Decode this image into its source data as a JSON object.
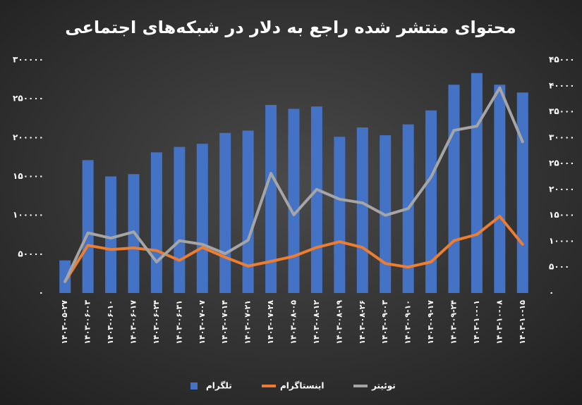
{
  "chart_data": {
    "type": "bar-line",
    "title": "محتوای منتشر شده راجع به دلار در شبکه‌های اجتماعی",
    "categories": [
      "۱۴۰۳-۰۵-۲۷",
      "۱۴۰۳-۰۶-۰۳",
      "۱۴۰۳-۰۶-۱۰",
      "۱۴۰۳-۰۶-۱۷",
      "۱۴۰۳-۰۶-۲۴",
      "۱۴۰۳-۰۶-۳۱",
      "۱۴۰۳-۰۷-۰۷",
      "۱۴۰۳-۰۷-۱۴",
      "۱۴۰۳-۰۷-۲۱",
      "۱۴۰۳-۰۷-۲۸",
      "۱۴۰۳-۰۸-۰۵",
      "۱۴۰۳-۰۸-۱۲",
      "۱۴۰۳-۰۸-۱۹",
      "۱۴۰۳-۰۸-۲۶",
      "۱۴۰۳-۰۹-۰۳",
      "۱۴۰۳-۰۹-۱۰",
      "۱۴۰۳-۰۹-۱۷",
      "۱۴۰۳-۰۹-۲۴",
      "۱۴۰۳-۱۰-۰۱",
      "۱۴۰۳-۱۰-۰۸",
      "۱۴۰۳-۱۰-۱۵"
    ],
    "series": [
      {
        "name": "تلگرام",
        "type": "bar",
        "color": "#4472c4",
        "values": [
          42000,
          171000,
          150000,
          153000,
          181000,
          188000,
          192000,
          206000,
          209000,
          242000,
          237000,
          240000,
          201000,
          213000,
          203000,
          217000,
          235000,
          268000,
          283000,
          268000,
          258000
        ]
      },
      {
        "name": "اینستاگرام",
        "type": "line",
        "axis": "y2",
        "color": "#ed7d31",
        "values": [
          2200,
          9200,
          8400,
          8700,
          8200,
          6300,
          8800,
          6900,
          5200,
          6100,
          7100,
          8800,
          9900,
          8800,
          5700,
          5000,
          6000,
          10100,
          11300,
          14800,
          9400
        ]
      },
      {
        "name": "توئیتر",
        "type": "line",
        "axis": "y2",
        "color": "#a5a5a5",
        "values": [
          2200,
          11600,
          10600,
          11800,
          6000,
          10100,
          9400,
          7600,
          10200,
          23100,
          15100,
          20000,
          18100,
          17400,
          15000,
          16300,
          22400,
          31400,
          32200,
          39600,
          29200
        ]
      }
    ],
    "ylim": [
      0,
      300000
    ],
    "yticks": [
      {
        "value": 0,
        "label": "۰"
      },
      {
        "value": 50000,
        "label": "۵۰۰۰۰"
      },
      {
        "value": 100000,
        "label": "۱۰۰۰۰۰"
      },
      {
        "value": 150000,
        "label": "۱۵۰۰۰۰"
      },
      {
        "value": 200000,
        "label": "۲۰۰۰۰۰"
      },
      {
        "value": 250000,
        "label": "۲۵۰۰۰۰"
      },
      {
        "value": 300000,
        "label": "۳۰۰۰۰۰"
      }
    ],
    "y2lim": [
      0,
      45000
    ],
    "y2ticks": [
      {
        "value": 0,
        "label": "۰"
      },
      {
        "value": 5000,
        "label": "۵۰۰۰"
      },
      {
        "value": 10000,
        "label": "۱۰۰۰۰"
      },
      {
        "value": 15000,
        "label": "۱۵۰۰۰"
      },
      {
        "value": 20000,
        "label": "۲۰۰۰۰"
      },
      {
        "value": 25000,
        "label": "۲۵۰۰۰"
      },
      {
        "value": 30000,
        "label": "۳۰۰۰۰"
      },
      {
        "value": 35000,
        "label": "۳۵۰۰۰"
      },
      {
        "value": 40000,
        "label": "۴۰۰۰۰"
      },
      {
        "value": 45000,
        "label": "۴۵۰۰۰"
      }
    ],
    "grid": false,
    "legend": "bottom"
  }
}
